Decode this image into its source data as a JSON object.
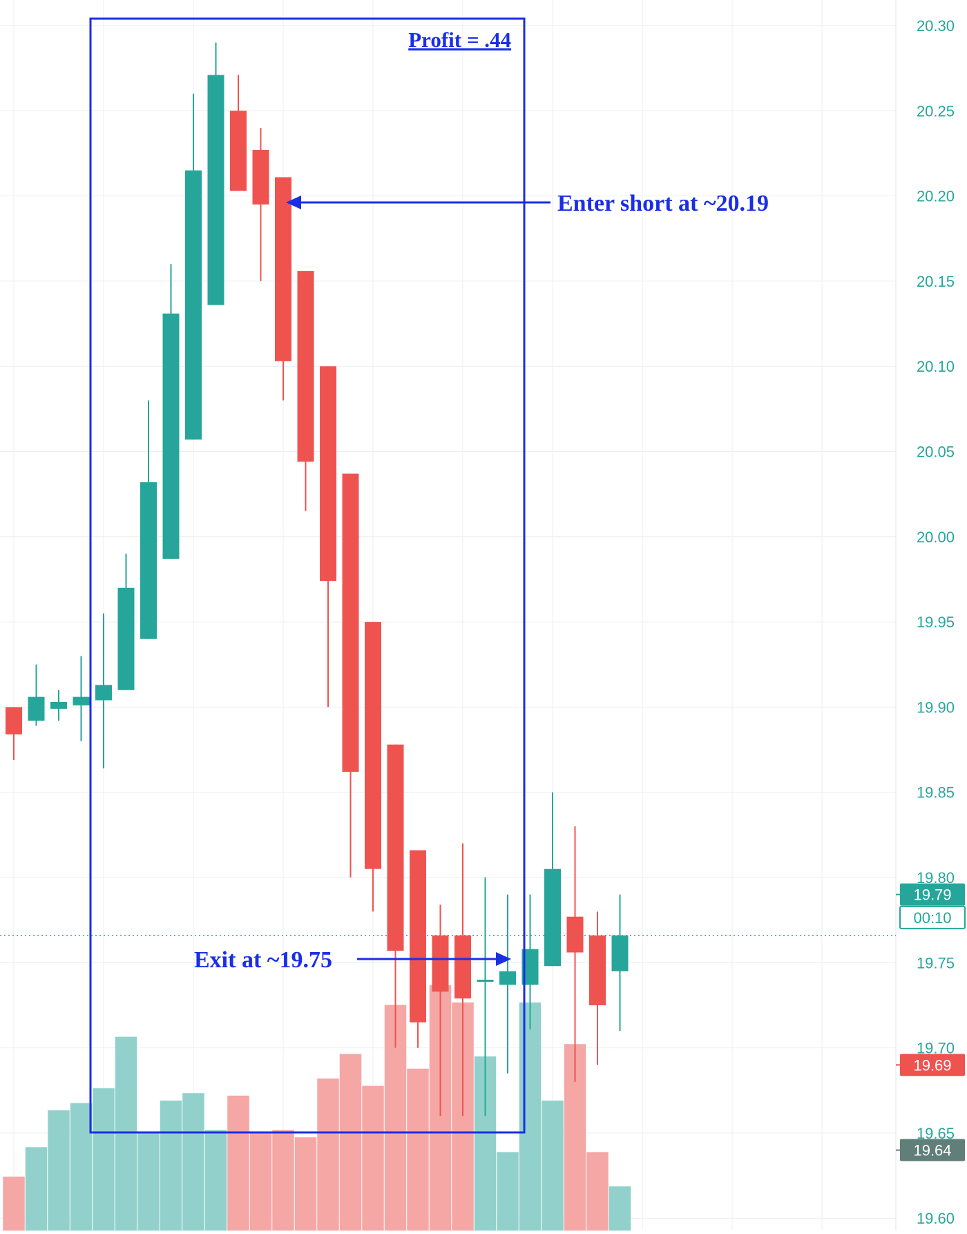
{
  "chart_data": {
    "type": "candlestick",
    "y_axis": {
      "ylim": [
        19.59,
        20.315
      ],
      "ticks": [
        "20.30",
        "20.25",
        "20.20",
        "20.15",
        "20.10",
        "20.05",
        "20.00",
        "19.95",
        "19.90",
        "19.85",
        "19.80",
        "19.75",
        "19.70",
        "19.65",
        "19.60"
      ]
    },
    "grid": true,
    "colors": {
      "up": "#26a69a",
      "down": "#ef5350",
      "up_volume": "#92d1cb",
      "down_volume": "#f5a7a6",
      "annotation": "#1a2ee6",
      "grid": "#eceef2",
      "axis_text": "#26a69a",
      "price_line": "#26a69a",
      "gray_tag": "#5f7f78"
    },
    "candles": [
      {
        "open": 19.9,
        "high": 19.9,
        "low": 19.869,
        "close": 19.884,
        "volume": 0.22
      },
      {
        "open": 19.892,
        "high": 19.925,
        "low": 19.889,
        "close": 19.906,
        "volume": 0.34
      },
      {
        "open": 19.899,
        "high": 19.91,
        "low": 19.892,
        "close": 19.903,
        "volume": 0.49
      },
      {
        "open": 19.901,
        "high": 19.93,
        "low": 19.88,
        "close": 19.906,
        "volume": 0.52
      },
      {
        "open": 19.904,
        "high": 19.955,
        "low": 19.864,
        "close": 19.913,
        "volume": 0.58
      },
      {
        "open": 19.91,
        "high": 19.99,
        "low": 19.91,
        "close": 19.97,
        "volume": 0.79
      },
      {
        "open": 19.94,
        "high": 20.08,
        "low": 19.94,
        "close": 20.032,
        "volume": 0.4
      },
      {
        "open": 19.987,
        "high": 20.16,
        "low": 19.987,
        "close": 20.131,
        "volume": 0.53
      },
      {
        "open": 20.057,
        "high": 20.26,
        "low": 20.057,
        "close": 20.215,
        "volume": 0.56
      },
      {
        "open": 20.136,
        "high": 20.29,
        "low": 20.136,
        "close": 20.271,
        "volume": 0.41
      },
      {
        "open": 20.25,
        "high": 20.271,
        "low": 20.203,
        "close": 20.203,
        "volume": 0.55
      },
      {
        "open": 20.227,
        "high": 20.24,
        "low": 20.15,
        "close": 20.195,
        "volume": 0.4
      },
      {
        "open": 20.211,
        "high": 20.211,
        "low": 20.08,
        "close": 20.103,
        "volume": 0.41
      },
      {
        "open": 20.156,
        "high": 20.156,
        "low": 20.015,
        "close": 20.044,
        "volume": 0.38
      },
      {
        "open": 20.1,
        "high": 20.1,
        "low": 19.9,
        "close": 19.974,
        "volume": 0.62
      },
      {
        "open": 20.037,
        "high": 20.037,
        "low": 19.8,
        "close": 19.862,
        "volume": 0.72
      },
      {
        "open": 19.95,
        "high": 19.95,
        "low": 19.78,
        "close": 19.805,
        "volume": 0.59
      },
      {
        "open": 19.878,
        "high": 19.878,
        "low": 19.7,
        "close": 19.757,
        "volume": 0.92
      },
      {
        "open": 19.816,
        "high": 19.816,
        "low": 19.7,
        "close": 19.715,
        "volume": 0.66
      },
      {
        "open": 19.766,
        "high": 19.784,
        "low": 19.66,
        "close": 19.733,
        "volume": 1.0
      },
      {
        "open": 19.766,
        "high": 19.82,
        "low": 19.66,
        "close": 19.729,
        "volume": 0.93
      },
      {
        "open": 19.74,
        "high": 19.8,
        "low": 19.66,
        "close": 19.74,
        "volume": 0.71
      },
      {
        "open": 19.737,
        "high": 19.79,
        "low": 19.685,
        "close": 19.745,
        "volume": 0.32
      },
      {
        "open": 19.737,
        "high": 19.79,
        "low": 19.711,
        "close": 19.758,
        "volume": 0.93
      },
      {
        "open": 19.748,
        "high": 19.85,
        "low": 19.748,
        "close": 19.805,
        "volume": 0.53
      },
      {
        "open": 19.777,
        "high": 19.83,
        "low": 19.68,
        "close": 19.756,
        "volume": 0.76
      },
      {
        "open": 19.766,
        "high": 19.78,
        "low": 19.69,
        "close": 19.725,
        "volume": 0.32
      },
      {
        "open": 19.745,
        "high": 19.79,
        "low": 19.71,
        "close": 19.766,
        "volume": 0.18
      }
    ],
    "current_price_line": 19.766,
    "price_tags": [
      {
        "text": "19.79",
        "value": 19.79,
        "color": "up"
      },
      {
        "text": "00:10",
        "value": 19.766,
        "color": "outline"
      },
      {
        "text": "19.69",
        "value": 19.69,
        "color": "down"
      },
      {
        "text": "19.64",
        "value": 19.64,
        "color": "gray"
      }
    ],
    "annotations": {
      "box_title": "Profit = .44",
      "entry": {
        "text": "Enter short at ~20.19",
        "price": 20.195
      },
      "exit": {
        "text": "Exit at ~19.75",
        "price": 19.755
      }
    }
  }
}
